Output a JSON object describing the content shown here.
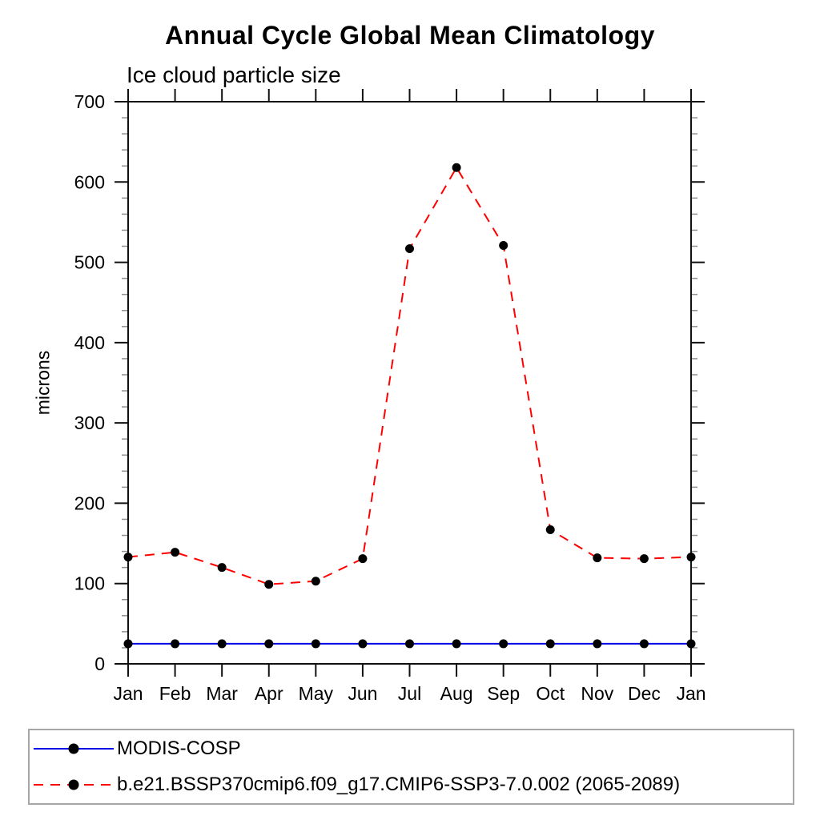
{
  "chart_data": {
    "type": "line",
    "title": "Annual Cycle Global Mean Climatology",
    "subtitle": "Ice cloud particle size",
    "ylabel": "microns",
    "xlabel": "",
    "ylim": [
      0,
      700
    ],
    "y_major_ticks": [
      0,
      100,
      200,
      300,
      400,
      500,
      600,
      700
    ],
    "y_minor_step": 20,
    "grid": false,
    "legend_position": "bottom-left-box",
    "categories": [
      "Jan",
      "Feb",
      "Mar",
      "Apr",
      "May",
      "Jun",
      "Jul",
      "Aug",
      "Sep",
      "Oct",
      "Nov",
      "Dec",
      "Jan"
    ],
    "series": [
      {
        "name": "MODIS-COSP",
        "color": "#0000e6",
        "line_style": "solid",
        "marker": "circle",
        "marker_color": "#000000",
        "values": [
          25,
          25,
          25,
          25,
          25,
          25,
          25,
          25,
          25,
          25,
          25,
          25,
          25
        ]
      },
      {
        "name": "b.e21.BSSP370cmip6.f09_g17.CMIP6-SSP3-7.0.002 (2065-2089)",
        "color": "#ff0000",
        "line_style": "dashed",
        "marker": "circle",
        "marker_color": "#000000",
        "values": [
          133,
          139,
          120,
          99,
          103,
          131,
          517,
          618,
          521,
          167,
          132,
          131,
          133
        ]
      }
    ],
    "axis_color": "#111111",
    "minor_tick_color": "#909090"
  }
}
